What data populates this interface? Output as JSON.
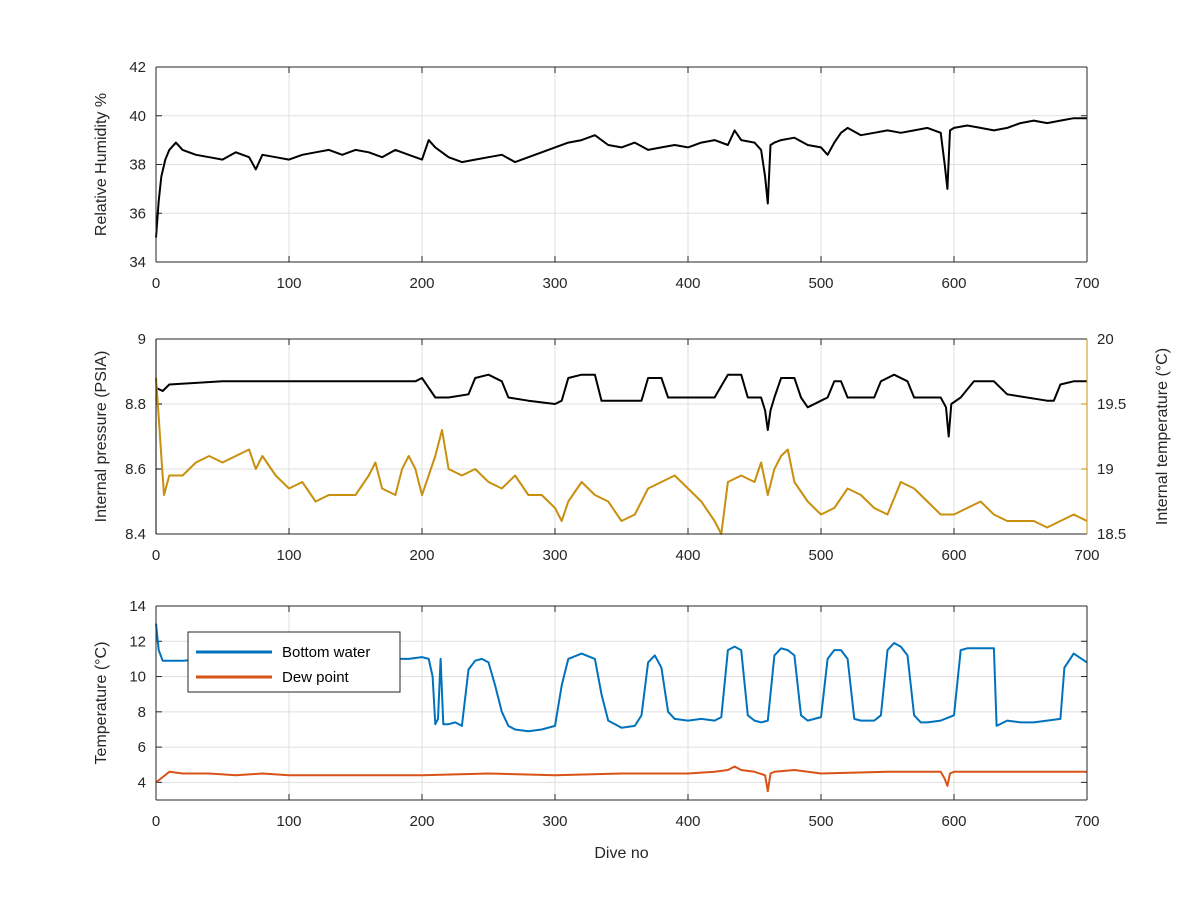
{
  "chart_data": [
    {
      "type": "line",
      "title": "",
      "xlabel": "",
      "ylabel": "Relative Humidity %",
      "xlim": [
        0,
        700
      ],
      "ylim": [
        34,
        42
      ],
      "xticks": [
        "0",
        "100",
        "200",
        "300",
        "400",
        "500",
        "600",
        "700"
      ],
      "yticks": [
        "34",
        "36",
        "38",
        "40",
        "42"
      ],
      "grid": true,
      "series": [
        {
          "color": "#000000",
          "x": [
            0,
            2,
            4,
            7,
            10,
            15,
            20,
            30,
            40,
            50,
            60,
            70,
            75,
            80,
            90,
            100,
            110,
            120,
            130,
            140,
            150,
            160,
            170,
            180,
            190,
            200,
            205,
            210,
            220,
            230,
            240,
            250,
            260,
            270,
            280,
            290,
            300,
            310,
            320,
            330,
            340,
            350,
            360,
            370,
            380,
            390,
            400,
            410,
            420,
            430,
            435,
            440,
            450,
            455,
            458,
            460,
            462,
            465,
            470,
            480,
            490,
            500,
            505,
            510,
            515,
            520,
            530,
            540,
            550,
            560,
            570,
            580,
            590,
            593,
            595,
            597,
            600,
            610,
            620,
            630,
            640,
            650,
            660,
            670,
            680,
            690,
            700
          ],
          "values": [
            35.0,
            36.5,
            37.5,
            38.2,
            38.6,
            38.9,
            38.6,
            38.4,
            38.3,
            38.2,
            38.5,
            38.3,
            37.8,
            38.4,
            38.3,
            38.2,
            38.4,
            38.5,
            38.6,
            38.4,
            38.6,
            38.5,
            38.3,
            38.6,
            38.4,
            38.2,
            39.0,
            38.7,
            38.3,
            38.1,
            38.2,
            38.3,
            38.4,
            38.1,
            38.3,
            38.5,
            38.7,
            38.9,
            39.0,
            39.2,
            38.8,
            38.7,
            38.9,
            38.6,
            38.7,
            38.8,
            38.7,
            38.9,
            39.0,
            38.8,
            39.4,
            39.0,
            38.9,
            38.6,
            37.5,
            36.4,
            38.8,
            38.9,
            39.0,
            39.1,
            38.8,
            38.7,
            38.4,
            38.9,
            39.3,
            39.5,
            39.2,
            39.3,
            39.4,
            39.3,
            39.4,
            39.5,
            39.3,
            38.0,
            37.0,
            39.4,
            39.5,
            39.6,
            39.5,
            39.4,
            39.5,
            39.7,
            39.8,
            39.7,
            39.8,
            39.9,
            39.9
          ]
        }
      ]
    },
    {
      "type": "line",
      "title": "",
      "xlabel": "",
      "ylabel": "Internal pressure (PSIA)",
      "ylabel_right": "Internal temperature (°C)",
      "xlim": [
        0,
        700
      ],
      "ylim": [
        8.4,
        9
      ],
      "ylim_right": [
        18.5,
        20
      ],
      "xticks": [
        "0",
        "100",
        "200",
        "300",
        "400",
        "500",
        "600",
        "700"
      ],
      "yticks": [
        "8.4",
        "8.6",
        "8.8",
        "9"
      ],
      "yticks_right": [
        "18.5",
        "19",
        "19.5",
        "20"
      ],
      "grid": true,
      "series": [
        {
          "axis": "left",
          "color": "#000000",
          "x": [
            0,
            5,
            10,
            50,
            100,
            150,
            195,
            200,
            205,
            210,
            220,
            235,
            240,
            250,
            260,
            265,
            280,
            300,
            305,
            310,
            320,
            330,
            335,
            345,
            365,
            370,
            380,
            385,
            395,
            415,
            420,
            430,
            440,
            445,
            455,
            458,
            460,
            462,
            465,
            470,
            480,
            485,
            490,
            500,
            505,
            510,
            515,
            520,
            540,
            545,
            555,
            565,
            570,
            590,
            594,
            596,
            598,
            605,
            615,
            630,
            640,
            670,
            675,
            680,
            690,
            700
          ],
          "values": [
            8.85,
            8.84,
            8.86,
            8.87,
            8.87,
            8.87,
            8.87,
            8.88,
            8.85,
            8.82,
            8.82,
            8.83,
            8.88,
            8.89,
            8.87,
            8.82,
            8.81,
            8.8,
            8.81,
            8.88,
            8.89,
            8.89,
            8.81,
            8.81,
            8.81,
            8.88,
            8.88,
            8.82,
            8.82,
            8.82,
            8.82,
            8.89,
            8.89,
            8.82,
            8.82,
            8.78,
            8.72,
            8.78,
            8.82,
            8.88,
            8.88,
            8.82,
            8.79,
            8.81,
            8.82,
            8.87,
            8.87,
            8.82,
            8.82,
            8.87,
            8.89,
            8.87,
            8.82,
            8.82,
            8.79,
            8.7,
            8.8,
            8.82,
            8.87,
            8.87,
            8.83,
            8.81,
            8.81,
            8.86,
            8.87,
            8.87
          ]
        },
        {
          "axis": "right",
          "color": "#c8900e",
          "x": [
            0,
            2,
            4,
            6,
            10,
            20,
            30,
            40,
            50,
            60,
            70,
            75,
            80,
            90,
            100,
            110,
            120,
            130,
            140,
            150,
            160,
            165,
            170,
            180,
            185,
            190,
            195,
            200,
            205,
            210,
            215,
            220,
            230,
            240,
            250,
            260,
            270,
            280,
            290,
            300,
            305,
            310,
            320,
            330,
            340,
            350,
            360,
            370,
            380,
            390,
            400,
            410,
            420,
            425,
            430,
            440,
            450,
            455,
            460,
            465,
            470,
            475,
            480,
            490,
            500,
            510,
            520,
            530,
            540,
            550,
            560,
            570,
            580,
            590,
            600,
            610,
            620,
            630,
            640,
            650,
            660,
            670,
            680,
            690,
            700
          ],
          "values": [
            19.7,
            19.4,
            19.1,
            18.8,
            18.95,
            18.95,
            19.05,
            19.1,
            19.05,
            19.1,
            19.15,
            19.0,
            19.1,
            18.95,
            18.85,
            18.9,
            18.75,
            18.8,
            18.8,
            18.8,
            18.95,
            19.05,
            18.85,
            18.8,
            19.0,
            19.1,
            19.0,
            18.8,
            18.95,
            19.1,
            19.3,
            19.0,
            18.95,
            19.0,
            18.9,
            18.85,
            18.95,
            18.8,
            18.8,
            18.7,
            18.6,
            18.75,
            18.9,
            18.8,
            18.75,
            18.6,
            18.65,
            18.85,
            18.9,
            18.95,
            18.85,
            18.75,
            18.6,
            18.5,
            18.9,
            18.95,
            18.9,
            19.05,
            18.8,
            19.0,
            19.1,
            19.15,
            18.9,
            18.75,
            18.65,
            18.7,
            18.85,
            18.8,
            18.7,
            18.65,
            18.9,
            18.85,
            18.75,
            18.65,
            18.65,
            18.7,
            18.75,
            18.65,
            18.6,
            18.6,
            18.6,
            18.55,
            18.6,
            18.65,
            18.6
          ]
        }
      ]
    },
    {
      "type": "line",
      "title": "",
      "xlabel": "Dive no",
      "ylabel": "Temperature (°C)",
      "xlim": [
        0,
        700
      ],
      "ylim": [
        3,
        14
      ],
      "xticks": [
        "0",
        "100",
        "200",
        "300",
        "400",
        "500",
        "600",
        "700"
      ],
      "yticks": [
        "4",
        "6",
        "8",
        "10",
        "12",
        "14"
      ],
      "grid": true,
      "legend": {
        "position": "top-left",
        "entries": [
          "Bottom water",
          "Dew point"
        ]
      },
      "series": [
        {
          "name": "Bottom water",
          "color": "#0072bd",
          "x": [
            0,
            2,
            5,
            10,
            20,
            40,
            60,
            70,
            80,
            100,
            120,
            140,
            150,
            160,
            170,
            180,
            190,
            200,
            205,
            208,
            210,
            212,
            214,
            216,
            218,
            220,
            225,
            230,
            235,
            240,
            245,
            250,
            255,
            260,
            265,
            270,
            280,
            290,
            300,
            305,
            310,
            320,
            330,
            335,
            340,
            350,
            360,
            365,
            370,
            375,
            380,
            385,
            390,
            400,
            410,
            420,
            425,
            430,
            435,
            440,
            445,
            450,
            455,
            460,
            465,
            470,
            475,
            480,
            485,
            490,
            495,
            500,
            505,
            510,
            515,
            520,
            525,
            530,
            540,
            545,
            550,
            555,
            560,
            565,
            570,
            575,
            580,
            590,
            600,
            605,
            610,
            620,
            630,
            632,
            640,
            650,
            660,
            670,
            680,
            683,
            690,
            700
          ],
          "values": [
            13.0,
            11.5,
            10.9,
            10.9,
            10.9,
            11.0,
            11.1,
            11.0,
            11.0,
            11.0,
            10.9,
            11.0,
            11.0,
            11.1,
            11.0,
            11.0,
            11.0,
            11.1,
            11.0,
            10.0,
            7.3,
            7.6,
            11.0,
            7.3,
            7.3,
            7.3,
            7.4,
            7.2,
            10.4,
            10.9,
            11.0,
            10.8,
            9.5,
            8.0,
            7.2,
            7.0,
            6.9,
            7.0,
            7.2,
            9.5,
            11.0,
            11.3,
            11.0,
            9.0,
            7.5,
            7.1,
            7.2,
            7.8,
            10.8,
            11.2,
            10.5,
            8.0,
            7.6,
            7.5,
            7.6,
            7.5,
            7.7,
            11.5,
            11.7,
            11.5,
            7.8,
            7.5,
            7.4,
            7.5,
            11.2,
            11.6,
            11.5,
            11.2,
            7.8,
            7.5,
            7.6,
            7.7,
            11.0,
            11.5,
            11.5,
            11.0,
            7.6,
            7.5,
            7.5,
            7.8,
            11.5,
            11.9,
            11.7,
            11.2,
            7.8,
            7.4,
            7.4,
            7.5,
            7.8,
            11.5,
            11.6,
            11.6,
            11.6,
            7.2,
            7.5,
            7.4,
            7.4,
            7.5,
            7.6,
            10.5,
            11.3,
            10.8
          ]
        },
        {
          "name": "Dew point",
          "color": "#d95319",
          "x": [
            0,
            5,
            10,
            20,
            40,
            60,
            80,
            100,
            150,
            200,
            250,
            300,
            350,
            400,
            420,
            430,
            435,
            440,
            450,
            458,
            460,
            462,
            465,
            480,
            500,
            550,
            590,
            593,
            595,
            597,
            600,
            650,
            700
          ],
          "values": [
            4.0,
            4.3,
            4.6,
            4.5,
            4.5,
            4.4,
            4.5,
            4.4,
            4.4,
            4.4,
            4.5,
            4.4,
            4.5,
            4.5,
            4.6,
            4.7,
            4.9,
            4.7,
            4.6,
            4.4,
            3.5,
            4.5,
            4.6,
            4.7,
            4.5,
            4.6,
            4.6,
            4.2,
            3.8,
            4.5,
            4.6,
            4.6,
            4.6
          ]
        }
      ]
    }
  ]
}
